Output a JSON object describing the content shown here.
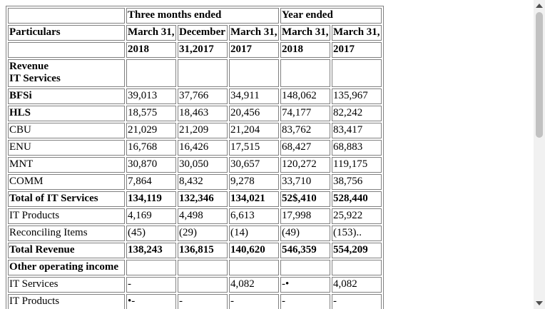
{
  "table": {
    "header_rows": [
      [
        "",
        "Three months ended",
        "Year ended"
      ],
      [
        "Particulars",
        "March 31,",
        "December",
        "March 31,",
        "March 31,",
        "March 31,"
      ],
      [
        "",
        "2018",
        "31,2017",
        "2017",
        "2018",
        "2017"
      ]
    ],
    "rows": [
      {
        "label": "Revenue\nIT Services",
        "bold": true,
        "cells": [
          "",
          "",
          "",
          "",
          ""
        ]
      },
      {
        "label": "BFSi",
        "bold_label": true,
        "cells": [
          "39,013",
          "37,766",
          "34,911",
          "148,062",
          "135,967"
        ]
      },
      {
        "label": "HLS",
        "bold_label": true,
        "cells": [
          "18,575",
          "18,463",
          "20,456",
          "74,177",
          "82,242"
        ]
      },
      {
        "label": "CBU",
        "cells": [
          "21,029",
          "21,209",
          "21,204",
          "83,762",
          "83,417"
        ]
      },
      {
        "label": "ENU",
        "cells": [
          "16,768",
          "16,426",
          "17,515",
          "68,427",
          "68,883"
        ]
      },
      {
        "label": "MNT",
        "cells": [
          "30,870",
          "30,050",
          "30,657",
          "120,272",
          "119,175"
        ]
      },
      {
        "label": "COMM",
        "cells": [
          "7,864",
          "8,432",
          "9,278",
          "33,710",
          "38,756"
        ]
      },
      {
        "label": "Total of IT Services",
        "bold": true,
        "cells": [
          "134,119",
          "132,346",
          "134,021",
          "52$,410",
          "528,440"
        ]
      },
      {
        "label": "IT Products",
        "cells": [
          "4,169",
          "4,498",
          "6,613",
          "17,998",
          "25,922"
        ]
      },
      {
        "label": "Reconciling Items",
        "cells": [
          "(45)",
          "(29)",
          "(14)",
          "(49)",
          "(153).."
        ]
      },
      {
        "label": "Total Revenue",
        "bold": true,
        "cells": [
          "138,243",
          "136,815",
          "140,620",
          "546,359",
          "554,209"
        ]
      },
      {
        "label": "Other operating income",
        "bold": true,
        "cells": [
          "",
          "",
          "",
          "",
          ""
        ]
      },
      {
        "label": "IT Services",
        "cells": [
          "-",
          "",
          "4,082",
          "-•",
          "4,082"
        ]
      },
      {
        "label": "IT Products",
        "cells": [
          "•-",
          "-",
          "-",
          "-",
          "-"
        ]
      }
    ]
  }
}
